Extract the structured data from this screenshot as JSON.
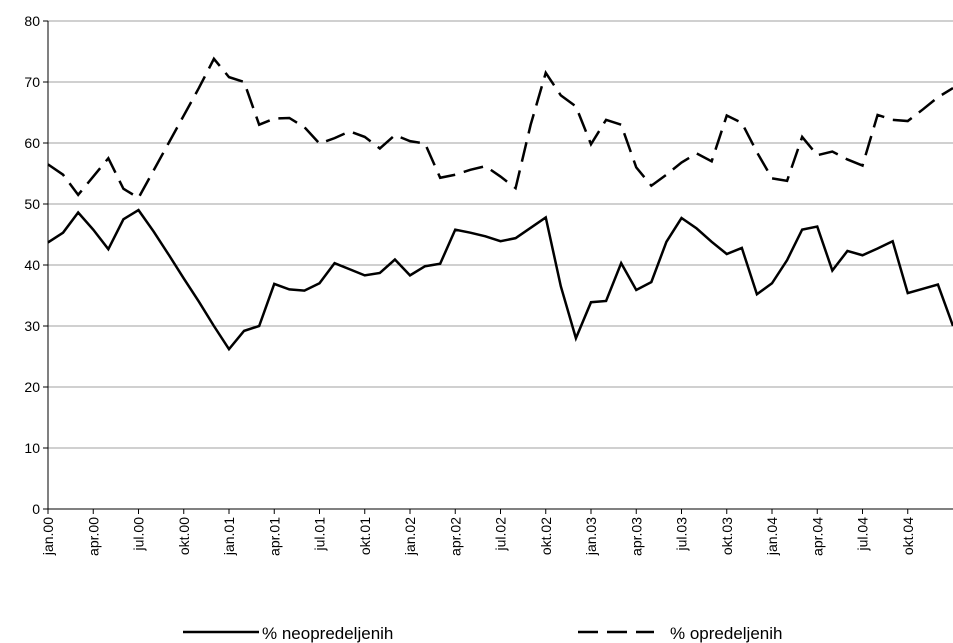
{
  "chart_data": {
    "type": "line",
    "categories": [
      "jan.00",
      null,
      null,
      "apr.00",
      null,
      null,
      "jul.00",
      null,
      null,
      "okt.00",
      null,
      null,
      "jan.01",
      null,
      null,
      "apr.01",
      null,
      null,
      "jul.01",
      null,
      null,
      "okt.01",
      null,
      null,
      "jan.02",
      null,
      null,
      "apr.02",
      null,
      null,
      "jul.02",
      null,
      null,
      "okt.02",
      null,
      null,
      "jan.03",
      null,
      null,
      "apr.03",
      null,
      null,
      "jul.03",
      null,
      null,
      "okt.03",
      null,
      null,
      "jan.04",
      null,
      null,
      "apr.04",
      null,
      null,
      "jul.04",
      null,
      null,
      "okt.04",
      null,
      null,
      null
    ],
    "series": [
      {
        "name": "% neopredeljenih",
        "color": "#000000",
        "dash": "solid",
        "values": [
          43.7,
          45.3,
          48.6,
          45.8,
          42.6,
          47.5,
          49,
          45.5,
          41.7,
          37.8,
          34,
          30,
          26.2,
          29.2,
          30,
          36.9,
          36,
          35.8,
          37,
          40.3,
          39.3,
          38.3,
          38.7,
          40.9,
          38.3,
          39.8,
          40.2,
          45.8,
          45.3,
          44.7,
          43.9,
          44.4,
          46.1,
          47.8,
          36.5,
          28,
          33.9,
          34.1,
          40.3,
          35.9,
          37.2,
          43.8,
          47.7,
          46,
          43.8,
          41.8,
          42.8,
          35.2,
          37,
          40.8,
          45.8,
          46.3,
          39.1,
          42.3,
          41.6,
          42.7,
          43.9,
          35.4,
          36.1,
          36.8,
          30
        ]
      },
      {
        "name": "% opredeljenih",
        "color": "#000000",
        "dash": "dashed",
        "values": [
          56.5,
          54.8,
          51.5,
          54.5,
          57.5,
          52.5,
          51,
          55.5,
          60,
          64.5,
          69,
          73.8,
          70.8,
          70,
          63,
          64,
          64.1,
          62.6,
          59.9,
          60.8,
          61.9,
          61,
          59.1,
          61.3,
          60.3,
          59.9,
          54.3,
          54.8,
          55.6,
          56.2,
          54.5,
          52.6,
          63,
          71.5,
          67.8,
          66,
          59.8,
          63.8,
          63,
          56,
          53,
          54.8,
          56.8,
          58.3,
          57,
          64.5,
          63.3,
          58.5,
          54.2,
          53.8,
          61,
          58,
          58.6,
          57.3,
          56.3,
          64.6,
          63.8,
          63.6,
          65.5,
          67.5,
          69
        ]
      }
    ],
    "ylim": [
      0,
      80
    ],
    "yticks": [
      0,
      10,
      20,
      30,
      40,
      50,
      60,
      70,
      80
    ],
    "grid": true,
    "legend": "bottom"
  }
}
